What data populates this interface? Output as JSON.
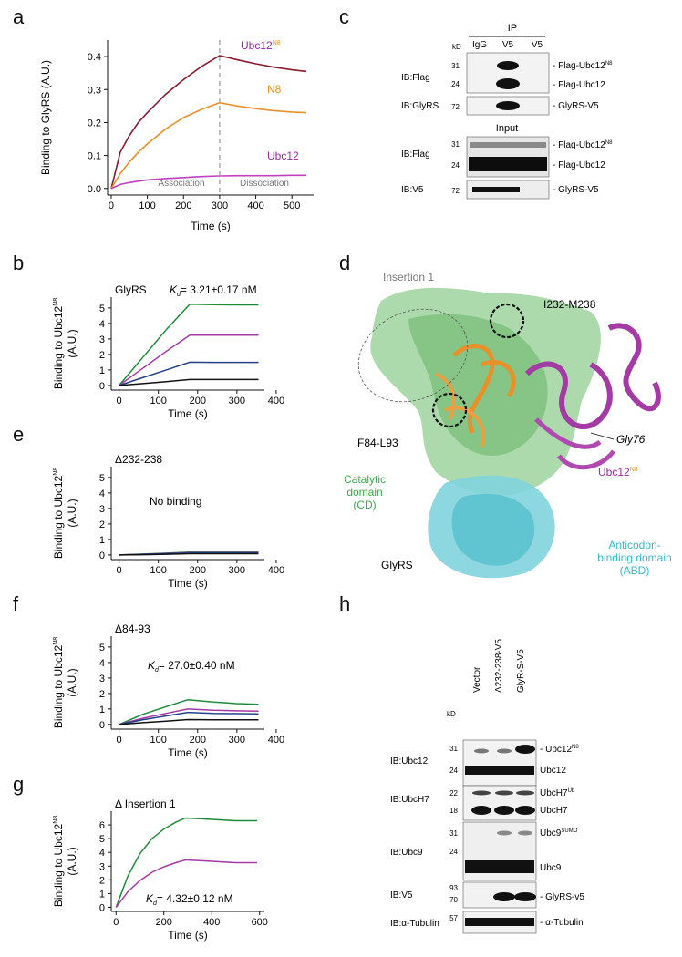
{
  "figure": {
    "panel_labels": {
      "a": "a",
      "b": "b",
      "c": "c",
      "d": "d",
      "e": "e",
      "f": "f",
      "g": "g",
      "h": "h"
    }
  },
  "colors": {
    "ubc12n8": "#8b1a2b",
    "n8": "#e8902a",
    "ubc12": "#c040c0",
    "green": "#1e8a3a",
    "magenta": "#a43aa4",
    "blue": "#24418a",
    "black": "#111111",
    "catalytic": "#3da84f",
    "abd": "#38b8c8",
    "ubc12_label": "#9a2aa0",
    "n8_label": "#e8902a"
  },
  "panel_a": {
    "ylabel": "Binding to GlyRS (A.U.)",
    "xlabel": "Time (s)",
    "assoc_label": "Association",
    "dissoc_label": "Dissociation",
    "series_labels": {
      "ubc12n8_main": "Ubc12",
      "ubc12n8_sup": "N8",
      "n8": "N8",
      "ubc12": "Ubc12"
    }
  },
  "panel_b": {
    "title": "GlyRS",
    "kd_k": "K",
    "kd_sub": "d",
    "kd_value": "= 3.21±0.17 nM",
    "xlabel": "Time (s)",
    "ylabel_main": "Binding to Ubc12",
    "ylabel_sup": "N8",
    "ylabel_unit": "(A.U.)"
  },
  "panel_e": {
    "title": "Δ232-238",
    "note": "No binding",
    "xlabel": "Time (s)",
    "ylabel_main": "Binding to Ubc12",
    "ylabel_sup": "N8",
    "ylabel_unit": "(A.U.)"
  },
  "panel_f": {
    "title": "Δ84-93",
    "kd_k": "K",
    "kd_sub": "d",
    "kd_value": "= 27.0±0.40 nM",
    "xlabel": "Time (s)",
    "ylabel_main": "Binding to Ubc12",
    "ylabel_sup": "N8",
    "ylabel_unit": "(A.U.)"
  },
  "panel_g": {
    "title": "Δ Insertion 1",
    "kd_k": "K",
    "kd_sub": "d",
    "kd_value": "= 4.32±0.12 nM",
    "xlabel": "Time (s)",
    "ylabel_main": "Binding to Ubc12",
    "ylabel_sup": "N8",
    "ylabel_unit": "(A.U.)"
  },
  "panel_c": {
    "ip_header": "IP",
    "kd": "kD",
    "lanes": [
      "IgG",
      "V5",
      "V5"
    ],
    "input_header": "Input",
    "rows": [
      {
        "ib": "IB:Flag",
        "mw": [
          "31",
          "24"
        ],
        "labels": [
          "Flag-Ubc12",
          "Flag-Ubc12"
        ],
        "sup": "N8"
      },
      {
        "ib": "IB:GlyRS",
        "mw": [
          "72"
        ],
        "labels": [
          "GlyRS-V5"
        ]
      },
      {
        "ib": "IB:Flag",
        "mw": [
          "31",
          "24"
        ],
        "labels": [
          "Flag-Ubc12",
          "Flag-Ubc12"
        ],
        "sup": "N8"
      },
      {
        "ib": "IB:V5",
        "mw": [
          "72"
        ],
        "labels": [
          "GlyRS-V5"
        ]
      }
    ]
  },
  "panel_d": {
    "insertion": "Insertion 1",
    "i232": "I232-M238",
    "f84": "F84-L93",
    "gly76": "Gly76",
    "ubc12": "Ubc12",
    "ubc12_sup": "N8",
    "catalytic": [
      "Catalytic",
      "domain",
      "(CD)"
    ],
    "glyrs": "GlyRS",
    "abd": [
      "Anticodon-",
      "binding domain",
      "(ABD)"
    ]
  },
  "panel_h": {
    "kd": "kD",
    "lanes": [
      "Vector",
      "Δ232-238-V5",
      "GlyR-S-V5"
    ],
    "rows": [
      {
        "ib": "IB:Ubc12",
        "mw": [
          "31",
          "24"
        ],
        "labels": [
          "Ubc12",
          "Ubc12"
        ],
        "sup": "N8"
      },
      {
        "ib": "IB:UbcH7",
        "mw": [
          "22",
          "18"
        ],
        "labels": [
          "UbcH7",
          "UbcH7"
        ],
        "sup": "Ub"
      },
      {
        "ib": "IB:Ubc9",
        "mw": [
          "31",
          "24"
        ],
        "labels": [
          "Ubc9",
          "Ubc9"
        ],
        "sup": "SUMO"
      },
      {
        "ib": "IB:V5",
        "mw": [
          "93",
          "70"
        ],
        "labels": [
          "GlyRS-v5"
        ]
      },
      {
        "ib": "IB:α-Tubulin",
        "mw": [
          "57"
        ],
        "labels": [
          "α-Tubulin"
        ]
      }
    ]
  },
  "chart_data": [
    {
      "type": "line",
      "panel": "a",
      "xlabel": "Time (s)",
      "ylabel": "Binding to GlyRS (A.U.)",
      "xlim": [
        -10,
        560
      ],
      "ylim": [
        -0.02,
        0.45
      ],
      "xticks": [
        0,
        100,
        200,
        300,
        400,
        500
      ],
      "yticks": [
        0.0,
        0.1,
        0.2,
        0.3,
        0.4
      ],
      "vline_x": 300,
      "x": [
        0,
        25,
        50,
        75,
        100,
        150,
        200,
        250,
        300,
        350,
        400,
        450,
        500,
        540
      ],
      "series": [
        {
          "name": "Ubc12N8",
          "values": [
            0,
            0.11,
            0.16,
            0.2,
            0.23,
            0.285,
            0.33,
            0.37,
            0.403,
            0.39,
            0.378,
            0.368,
            0.36,
            0.355
          ]
        },
        {
          "name": "N8",
          "values": [
            0,
            0.045,
            0.08,
            0.11,
            0.135,
            0.18,
            0.215,
            0.24,
            0.26,
            0.25,
            0.242,
            0.236,
            0.232,
            0.23
          ]
        },
        {
          "name": "Ubc12",
          "values": [
            0,
            0.012,
            0.018,
            0.022,
            0.026,
            0.03,
            0.033,
            0.036,
            0.038,
            0.039,
            0.039,
            0.039,
            0.04,
            0.04
          ]
        }
      ]
    },
    {
      "type": "line",
      "panel": "b",
      "xlabel": "Time (s)",
      "ylim": [
        -0.3,
        5.7
      ],
      "xlim": [
        -20,
        370
      ],
      "xticks": [
        0,
        100,
        200,
        300,
        400
      ],
      "yticks": [
        0,
        1,
        2,
        3,
        4,
        5
      ],
      "x": [
        0,
        60,
        120,
        180,
        240,
        300,
        355
      ],
      "series": [
        {
          "values": [
            0,
            1.8,
            3.6,
            5.25,
            5.22,
            5.2,
            5.2
          ]
        },
        {
          "values": [
            0,
            1.1,
            2.2,
            3.25,
            3.24,
            3.24,
            3.24
          ]
        },
        {
          "values": [
            0,
            0.5,
            1.0,
            1.5,
            1.49,
            1.49,
            1.49
          ]
        },
        {
          "values": [
            0,
            0.12,
            0.25,
            0.38,
            0.38,
            0.38,
            0.38
          ]
        }
      ]
    },
    {
      "type": "line",
      "panel": "e",
      "xlabel": "Time (s)",
      "ylim": [
        -0.3,
        5.7
      ],
      "xlim": [
        -20,
        370
      ],
      "xticks": [
        0,
        100,
        200,
        300,
        400
      ],
      "yticks": [
        0,
        1,
        2,
        3,
        4,
        5
      ],
      "x": [
        0,
        60,
        120,
        180,
        240,
        300,
        355
      ],
      "series": [
        {
          "values": [
            0,
            0.06,
            0.12,
            0.18,
            0.18,
            0.18,
            0.18
          ]
        },
        {
          "values": [
            0,
            0.05,
            0.1,
            0.15,
            0.15,
            0.15,
            0.15
          ]
        },
        {
          "values": [
            0,
            0.04,
            0.08,
            0.13,
            0.13,
            0.13,
            0.13
          ]
        },
        {
          "values": [
            0,
            0.02,
            0.05,
            0.08,
            0.08,
            0.08,
            0.08
          ]
        }
      ]
    },
    {
      "type": "line",
      "panel": "f",
      "xlabel": "Time (s)",
      "ylim": [
        -0.3,
        5.7
      ],
      "xlim": [
        -20,
        370
      ],
      "xticks": [
        0,
        100,
        200,
        300,
        400
      ],
      "yticks": [
        0,
        1,
        2,
        3,
        4,
        5
      ],
      "x": [
        0,
        60,
        120,
        175,
        240,
        300,
        355
      ],
      "series": [
        {
          "values": [
            0,
            0.65,
            1.15,
            1.6,
            1.45,
            1.35,
            1.3
          ]
        },
        {
          "values": [
            0,
            0.4,
            0.72,
            1.0,
            0.92,
            0.88,
            0.86
          ]
        },
        {
          "values": [
            0,
            0.3,
            0.55,
            0.78,
            0.72,
            0.7,
            0.68
          ]
        },
        {
          "values": [
            0,
            0.12,
            0.22,
            0.32,
            0.3,
            0.3,
            0.3
          ]
        }
      ]
    },
    {
      "type": "line",
      "panel": "g",
      "xlabel": "Time (s)",
      "ylim": [
        -0.3,
        7.0
      ],
      "xlim": [
        -20,
        620
      ],
      "xticks": [
        0,
        200,
        400,
        600
      ],
      "yticks": [
        0,
        1,
        2,
        3,
        4,
        5,
        6
      ],
      "x": [
        0,
        50,
        100,
        150,
        200,
        250,
        290,
        350,
        400,
        450,
        500,
        590
      ],
      "series": [
        {
          "values": [
            0,
            2.3,
            3.9,
            5.0,
            5.7,
            6.2,
            6.5,
            6.45,
            6.4,
            6.35,
            6.3,
            6.3
          ]
        },
        {
          "values": [
            0,
            1.15,
            1.95,
            2.55,
            2.95,
            3.25,
            3.45,
            3.4,
            3.35,
            3.3,
            3.25,
            3.25
          ]
        }
      ]
    }
  ]
}
